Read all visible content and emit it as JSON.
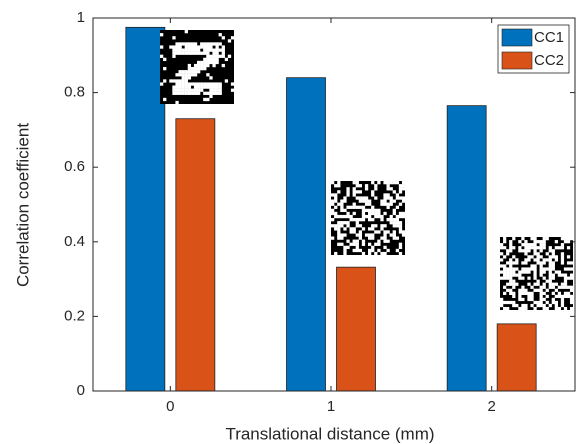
{
  "chart_data": {
    "type": "bar",
    "x_label": "Translational distance (mm)",
    "y_label": "Correlation coefficient",
    "categories": [
      "0",
      "1",
      "2"
    ],
    "series": [
      {
        "name": "CC1",
        "color": "#0072bd",
        "values": [
          0.975,
          0.84,
          0.765
        ]
      },
      {
        "name": "CC2",
        "color": "#d95319",
        "values": [
          0.73,
          0.332,
          0.18
        ]
      }
    ],
    "ylim": [
      0,
      1
    ],
    "yticks": [
      0,
      0.2,
      0.4,
      0.6,
      0.8,
      1
    ],
    "legend": "top-right"
  }
}
